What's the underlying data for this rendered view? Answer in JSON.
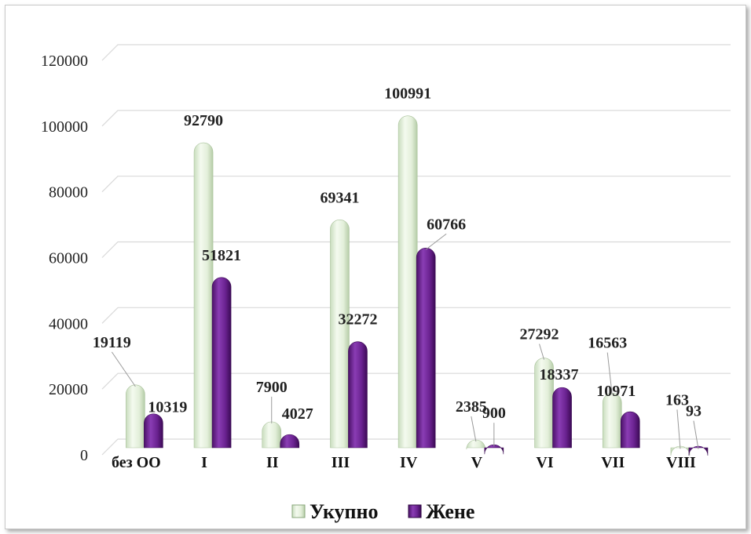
{
  "chart_data": {
    "type": "bar",
    "categories": [
      "без ОО",
      "I",
      "II",
      "III",
      "IV",
      "V",
      "VI",
      "VII",
      "VIII"
    ],
    "series": [
      {
        "name": "Укупно",
        "values": [
          19119,
          92790,
          7900,
          69341,
          100991,
          2385,
          27292,
          16563,
          163
        ],
        "color": "#e6f2df"
      },
      {
        "name": "Жене",
        "values": [
          10319,
          51821,
          4027,
          32272,
          60766,
          900,
          18337,
          10971,
          93
        ],
        "color": "#6a2290"
      }
    ],
    "y_ticks": [
      "0",
      "20000",
      "40000",
      "60000",
      "80000",
      "100000",
      "120000"
    ],
    "ylim": [
      0,
      120000
    ],
    "grid": true,
    "legend_position": "bottom",
    "style": "3d-cylinder"
  }
}
